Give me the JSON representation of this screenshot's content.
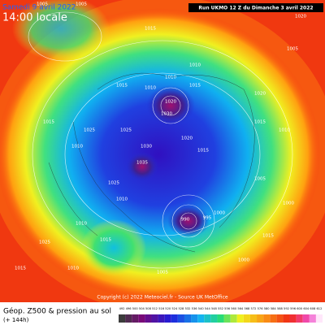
{
  "header": {
    "date": "Samedi 9 avril 2022",
    "time": "14:00 locale",
    "run": "Run UKMO 12 Z du Dimanche 3 avril 2022"
  },
  "map": {
    "copyright": "Copyright (c) 2022 Meteociel.fr - Source UK MetOffice",
    "pressure_labels": [
      "1005",
      "1005",
      "1015",
      "1010",
      "1020",
      "1010",
      "1015",
      "1010",
      "1015",
      "1020",
      "1025",
      "1025",
      "1030",
      "1010",
      "1015",
      "1020",
      "1035",
      "1015",
      "1030",
      "1025",
      "990",
      "995",
      "1000",
      "1010",
      "1015",
      "1025",
      "1010",
      "1005",
      "1000",
      "1010",
      "1015",
      "1005",
      "1020",
      "1015",
      "1010",
      "1005",
      "1000",
      "1015"
    ]
  },
  "footer": {
    "title": "Géop. Z500 & pression au sol",
    "lead": "(+ 144h)",
    "scale": [
      "492",
      "496",
      "500",
      "504",
      "508",
      "512",
      "516",
      "520",
      "524",
      "528",
      "532",
      "536",
      "540",
      "544",
      "548",
      "552",
      "556",
      "560",
      "564",
      "568",
      "572",
      "576",
      "580",
      "584",
      "588",
      "592",
      "596",
      "600",
      "604",
      "608",
      "612"
    ]
  }
}
